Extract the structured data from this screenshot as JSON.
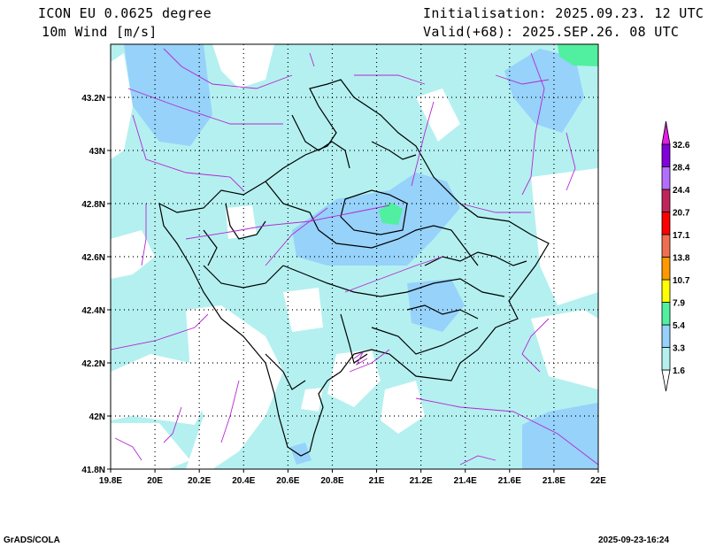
{
  "header": {
    "model": "ICON EU 0.0625 degree",
    "variable": "10m Wind [m/s]",
    "init": "Initialisation: 2025.09.23. 12 UTC",
    "valid": "Valid(+68): 2025.SEP.26. 08 UTC"
  },
  "footer": {
    "left": "GrADS/COLA",
    "right": "2025-09-23-16:24"
  },
  "chart_data": {
    "type": "heatmap",
    "title": "10m Wind [m/s]",
    "xlim": [
      19.8,
      22.0
    ],
    "ylim": [
      41.8,
      43.4
    ],
    "x_ticks": [
      "19.8E",
      "20E",
      "20.2E",
      "20.4E",
      "20.6E",
      "20.8E",
      "21E",
      "21.2E",
      "21.4E",
      "21.6E",
      "21.8E",
      "22E"
    ],
    "x_tick_values": [
      19.8,
      20.0,
      20.2,
      20.4,
      20.6,
      20.8,
      21.0,
      21.2,
      21.4,
      21.6,
      21.8,
      22.0
    ],
    "y_ticks": [
      "41.8N",
      "42N",
      "42.2N",
      "42.4N",
      "42.6N",
      "42.8N",
      "43N",
      "43.2N"
    ],
    "y_tick_values": [
      41.8,
      42.0,
      42.2,
      42.4,
      42.6,
      42.8,
      43.0,
      43.2
    ],
    "grid": true,
    "colorbar": {
      "placement": "right",
      "levels": [
        "1.6",
        "3.3",
        "5.4",
        "7.9",
        "10.7",
        "13.8",
        "17.1",
        "20.7",
        "24.4",
        "28.4",
        "32.6"
      ],
      "colors": [
        "#ffffff",
        "#b4f0f0",
        "#96d2fa",
        "#50f0a0",
        "#ffff00",
        "#ff9900",
        "#ee6e50",
        "#ff0000",
        "#c0245a",
        "#b46eff",
        "#8200dc",
        "#e11ee1"
      ]
    },
    "colors": {
      "streamline": "#b428d2",
      "border": "#000000"
    }
  }
}
